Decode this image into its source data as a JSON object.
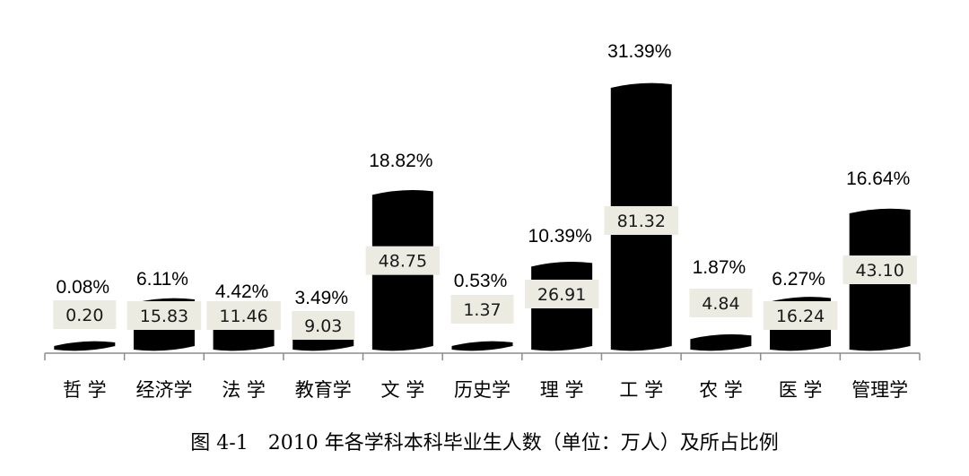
{
  "caption": "图 4-1　2010 年各学科本科毕业生人数（单位：万人）及所占比例",
  "chart_data": {
    "type": "bar",
    "categories": [
      "哲 学",
      "经济学",
      "法 学",
      "教育学",
      "文 学",
      "历史学",
      "理 学",
      "工 学",
      "农 学",
      "医 学",
      "管理学"
    ],
    "series": [
      {
        "values": [
          0.2,
          15.83,
          11.46,
          9.03,
          48.75,
          1.37,
          26.91,
          81.32,
          4.84,
          16.24,
          43.1
        ],
        "value_labels": [
          "0.20",
          "15.83",
          "11.46",
          "9.03",
          "48.75",
          "1.37",
          "26.91",
          "81.32",
          "4.84",
          "16.24",
          "43.10"
        ],
        "percent_labels": [
          "0.08%",
          "6.11%",
          "4.42%",
          "3.49%",
          "18.82%",
          "0.53%",
          "10.39%",
          "31.39%",
          "1.87%",
          "6.27%",
          "16.64%"
        ]
      }
    ],
    "ylim": [
      0,
      81.32
    ],
    "grid": false,
    "legend": "none",
    "bar_color": "#000000",
    "label_box_color": "#ecebe2"
  }
}
